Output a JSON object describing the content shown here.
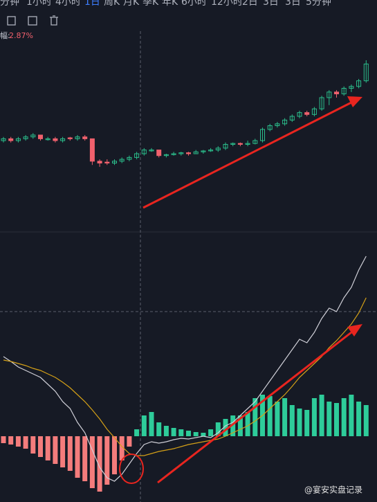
{
  "tabs": [
    "分钟",
    "1小时",
    "4小时",
    "1日",
    "周K",
    "月K",
    "季K",
    "年K",
    "6小时",
    "12小时",
    "2日",
    "3日",
    "3日",
    "5分钟"
  ],
  "change_label": "幅:",
  "change_value": "2.87%",
  "watermark": "@宴安实盘记录",
  "chart_data": [
    {
      "type": "candlestick",
      "ylim": [
        0,
        100
      ],
      "up_color": "#2bbd8b",
      "down_color": "#f0616d",
      "candles": [
        [
          47,
          49,
          46,
          48
        ],
        [
          48,
          49,
          46,
          47
        ],
        [
          47,
          49,
          46,
          48
        ],
        [
          48,
          50,
          47,
          49
        ],
        [
          49,
          51,
          48,
          50
        ],
        [
          50,
          50,
          47,
          48
        ],
        [
          47.5,
          49,
          47,
          48
        ],
        [
          48,
          49,
          46,
          47
        ],
        [
          47,
          49,
          46,
          48
        ],
        [
          48.5,
          49,
          47,
          48
        ],
        [
          48,
          50,
          47,
          49
        ],
        [
          49,
          50,
          47,
          48
        ],
        [
          48,
          48,
          34,
          36
        ],
        [
          36,
          37,
          33,
          35
        ],
        [
          35.5,
          37,
          34,
          35
        ],
        [
          35,
          37,
          34,
          36
        ],
        [
          36,
          38,
          35,
          37
        ],
        [
          37,
          39,
          36,
          38
        ],
        [
          38,
          41,
          37,
          40
        ],
        [
          40,
          43,
          39,
          42
        ],
        [
          41.5,
          43,
          41,
          42
        ],
        [
          42,
          42,
          38,
          39
        ],
        [
          39,
          40,
          38,
          39.5
        ],
        [
          39.5,
          41,
          39,
          40
        ],
        [
          40,
          41,
          39,
          40.5
        ],
        [
          40.5,
          41,
          39,
          40
        ],
        [
          40,
          42,
          40,
          41
        ],
        [
          41,
          42,
          40,
          41.5
        ],
        [
          41.5,
          43,
          41,
          42
        ],
        [
          42,
          44,
          41,
          43
        ],
        [
          43,
          46,
          42,
          45
        ],
        [
          45,
          46,
          44,
          45.5
        ],
        [
          45.5,
          46,
          44,
          45
        ],
        [
          45,
          47,
          44,
          45.5
        ],
        [
          45.5,
          48,
          45,
          47
        ],
        [
          47,
          54,
          46,
          53
        ],
        [
          53,
          56,
          52,
          55
        ],
        [
          55,
          57,
          54,
          56
        ],
        [
          56,
          59,
          55,
          58
        ],
        [
          58,
          61,
          57,
          60
        ],
        [
          60,
          63,
          59,
          62
        ],
        [
          62,
          63,
          60,
          61
        ],
        [
          61,
          65,
          60,
          64
        ],
        [
          64,
          71,
          63,
          70
        ],
        [
          70,
          74,
          66,
          73
        ],
        [
          73,
          74,
          70,
          72
        ],
        [
          72,
          76,
          71,
          75
        ],
        [
          75,
          77,
          73,
          76
        ],
        [
          76,
          80,
          75,
          79
        ],
        [
          79,
          90,
          78,
          88
        ]
      ]
    },
    {
      "type": "macd",
      "ylim": [
        -90,
        280
      ],
      "up_color": "#2ecc9a",
      "down_color": "#f47c7c",
      "histogram": [
        -10,
        -12,
        -15,
        -18,
        -25,
        -30,
        -35,
        -40,
        -45,
        -50,
        -60,
        -65,
        -75,
        -80,
        -70,
        -55,
        -35,
        -15,
        10,
        30,
        35,
        20,
        15,
        12,
        10,
        8,
        6,
        5,
        10,
        20,
        25,
        30,
        30,
        35,
        55,
        60,
        58,
        50,
        55,
        45,
        40,
        38,
        55,
        60,
        50,
        48,
        55,
        60,
        50,
        45
      ],
      "series": [
        {
          "color": "#d0d0d8",
          "values": [
            115,
            108,
            100,
            95,
            90,
            85,
            75,
            65,
            50,
            40,
            20,
            5,
            -20,
            -45,
            -60,
            -65,
            -55,
            -40,
            -25,
            -12,
            -8,
            -10,
            -8,
            -5,
            -3,
            -4,
            -2,
            0,
            -2,
            5,
            15,
            20,
            30,
            40,
            50,
            65,
            80,
            95,
            110,
            125,
            140,
            135,
            150,
            170,
            185,
            180,
            200,
            215,
            240,
            260
          ]
        },
        {
          "color": "#d4a017",
          "values": [
            110,
            108,
            105,
            102,
            98,
            95,
            90,
            85,
            78,
            70,
            60,
            50,
            38,
            25,
            10,
            -2,
            -15,
            -25,
            -28,
            -28,
            -25,
            -22,
            -20,
            -18,
            -15,
            -12,
            -10,
            -8,
            -6,
            -4,
            0,
            5,
            10,
            15,
            22,
            30,
            40,
            50,
            60,
            72,
            85,
            95,
            105,
            115,
            128,
            138,
            150,
            162,
            178,
            200
          ]
        }
      ]
    }
  ]
}
